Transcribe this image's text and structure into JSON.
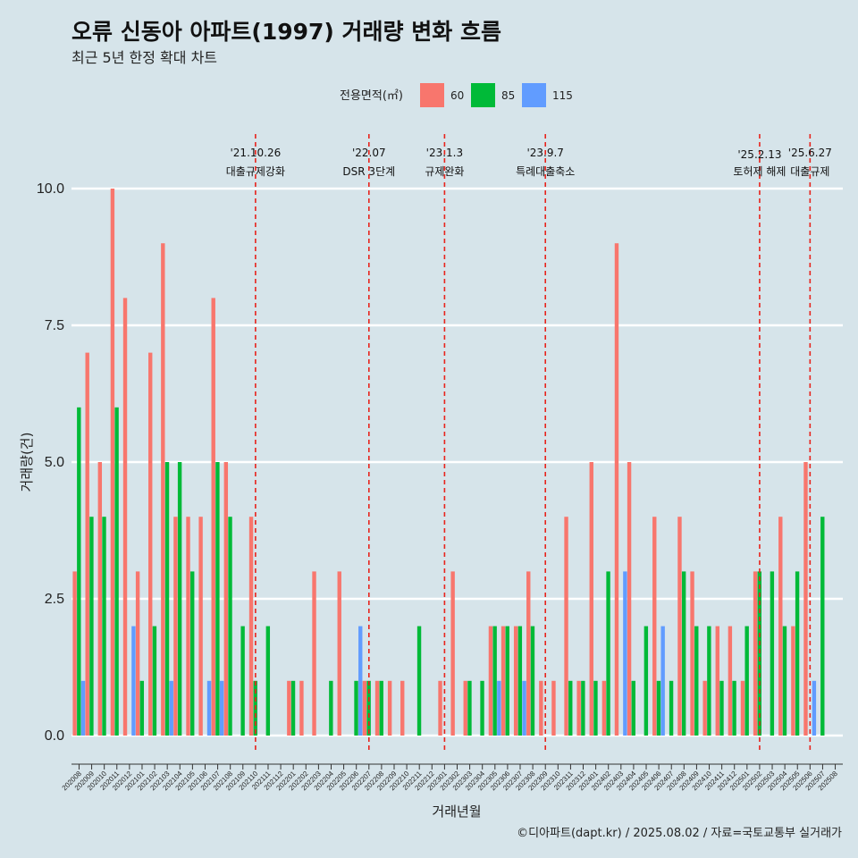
{
  "chart_data": {
    "type": "bar",
    "title": "오류 신동아 아파트(1997) 거래량 변화 흐름",
    "subtitle": "최근 5년 한정 확대 차트",
    "xlabel": "거래년월",
    "ylabel": "거래량(건)",
    "ylim": [
      0,
      10
    ],
    "yticks": [
      "0.0",
      "2.5",
      "5.0",
      "7.5",
      "10.0"
    ],
    "grid": "horizontal",
    "legend": {
      "title": "전용면적(㎡)",
      "position": "top",
      "entries": [
        {
          "label": "60",
          "color": "#f8766d"
        },
        {
          "label": "85",
          "color": "#00ba38"
        },
        {
          "label": "115",
          "color": "#619cff"
        }
      ]
    },
    "caption": "©디아파트(dapt.kr) / 2025.08.02 / 자료=국토교통부 실거래가",
    "categories": [
      "202008",
      "202009",
      "202010",
      "202011",
      "202012",
      "202101",
      "202102",
      "202103",
      "202104",
      "202105",
      "202106",
      "202107",
      "202108",
      "202109",
      "202110",
      "202111",
      "202112",
      "202201",
      "202202",
      "202203",
      "202204",
      "202205",
      "202206",
      "202207",
      "202208",
      "202209",
      "202210",
      "202211",
      "202212",
      "202301",
      "202302",
      "202303",
      "202304",
      "202305",
      "202306",
      "202307",
      "202308",
      "202309",
      "202310",
      "202311",
      "202312",
      "202401",
      "202402",
      "202403",
      "202404",
      "202405",
      "202406",
      "202407",
      "202408",
      "202409",
      "202410",
      "202411",
      "202412",
      "202501",
      "202502",
      "202503",
      "202504",
      "202505",
      "202506",
      "202507",
      "202508"
    ],
    "series": [
      {
        "name": "60",
        "color": "#f8766d",
        "values": [
          3,
          7,
          5,
          10,
          8,
          3,
          7,
          9,
          4,
          4,
          4,
          8,
          5,
          0,
          4,
          0,
          0,
          1,
          1,
          3,
          0,
          3,
          0,
          1,
          1,
          1,
          1,
          0,
          0,
          1,
          3,
          1,
          0,
          2,
          2,
          2,
          3,
          1,
          1,
          4,
          1,
          5,
          1,
          9,
          5,
          0,
          4,
          0,
          4,
          3,
          1,
          2,
          2,
          1,
          3,
          0,
          4,
          2,
          5,
          0,
          0
        ]
      },
      {
        "name": "85",
        "color": "#00ba38",
        "values": [
          6,
          4,
          4,
          6,
          0,
          1,
          2,
          5,
          5,
          3,
          0,
          5,
          4,
          2,
          1,
          2,
          0,
          1,
          0,
          0,
          1,
          0,
          1,
          1,
          1,
          0,
          0,
          2,
          0,
          0,
          0,
          1,
          1,
          2,
          2,
          2,
          2,
          0,
          0,
          1,
          1,
          1,
          3,
          0,
          1,
          2,
          1,
          1,
          3,
          2,
          2,
          1,
          1,
          2,
          3,
          3,
          2,
          3,
          0,
          4,
          0
        ]
      },
      {
        "name": "115",
        "color": "#619cff",
        "values": [
          1,
          0,
          0,
          0,
          2,
          0,
          0,
          1,
          0,
          0,
          1,
          1,
          0,
          0,
          0,
          0,
          0,
          0,
          0,
          0,
          0,
          0,
          2,
          0,
          0,
          0,
          0,
          0,
          0,
          0,
          0,
          0,
          0,
          1,
          0,
          1,
          0,
          0,
          0,
          0,
          0,
          0,
          0,
          3,
          0,
          0,
          2,
          0,
          0,
          0,
          0,
          0,
          0,
          0,
          0,
          0,
          0,
          0,
          1,
          0,
          0
        ]
      }
    ],
    "events": [
      {
        "date": "'21.10.26",
        "label": "대출규제강화",
        "category": "202110"
      },
      {
        "date": "'22.07",
        "label": "DSR 3단계",
        "category": "202207"
      },
      {
        "date": "'23.1.3",
        "label": "규제완화",
        "category": "202301"
      },
      {
        "date": "'23.9.7",
        "label": "특례대출축소",
        "category": "202309"
      },
      {
        "date": "'25.2.13",
        "label": "토허제 해제",
        "category": "202502"
      },
      {
        "date": "'25.6.27",
        "label": "대출규제",
        "category": "202506"
      }
    ]
  }
}
